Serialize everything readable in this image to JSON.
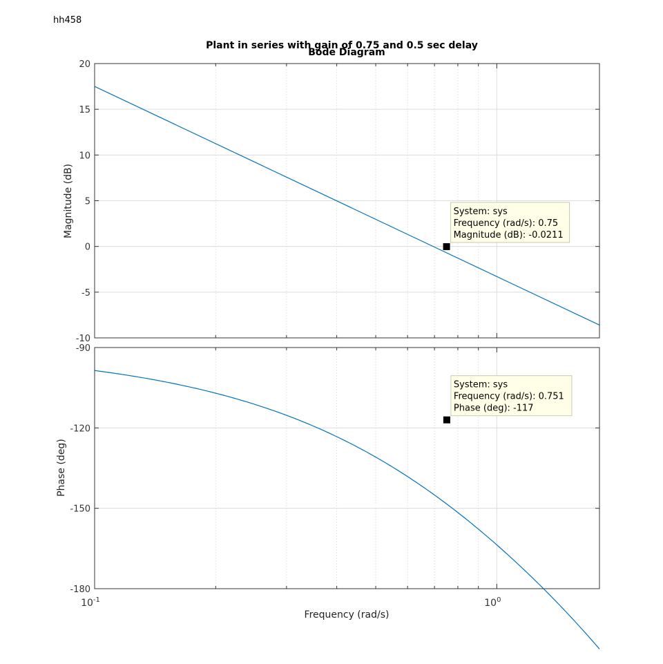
{
  "corner_label": "hh458",
  "chart_data": {
    "type": "line",
    "title": "Plant in series with gain of 0.75 and 0.5 sec delay",
    "subtitle": "Bode Diagram",
    "xlabel": "Frequency  (rad/s)",
    "xscale": "log",
    "xlim": [
      0.1,
      1.8
    ],
    "x_ticks": [
      {
        "value": 0.1,
        "base": "10",
        "exp": "-1"
      },
      {
        "value": 1,
        "base": "10",
        "exp": "0"
      }
    ],
    "grid": true,
    "line_color": "#0072bd",
    "panels": [
      {
        "name": "magnitude",
        "ylabel": "Magnitude (dB)",
        "ylim": [
          -10,
          20
        ],
        "yticks": [
          "-10",
          "-5",
          "0",
          "5",
          "10",
          "15",
          "20"
        ],
        "series": [
          {
            "x": [
              0.1,
              1.8
            ],
            "y": [
              17.5,
              -8.6
            ]
          }
        ],
        "datatip": {
          "x": 0.75,
          "y": -0.0211,
          "lines": [
            "System: sys",
            "Frequency (rad/s): 0.75",
            "Magnitude (dB): -0.0211"
          ]
        }
      },
      {
        "name": "phase",
        "ylabel": "Phase (deg)",
        "ylim": [
          -180,
          -90
        ],
        "yticks": [
          "-180",
          "-150",
          "-120",
          "-90"
        ],
        "series": [
          {
            "formula": "phase",
            "x_range": [
              0.1,
              1.8
            ]
          }
        ],
        "datatip": {
          "x": 0.751,
          "y": -117,
          "lines": [
            "System: sys",
            "Frequency (rad/s): 0.751",
            "Phase (deg): -117"
          ]
        }
      }
    ]
  }
}
